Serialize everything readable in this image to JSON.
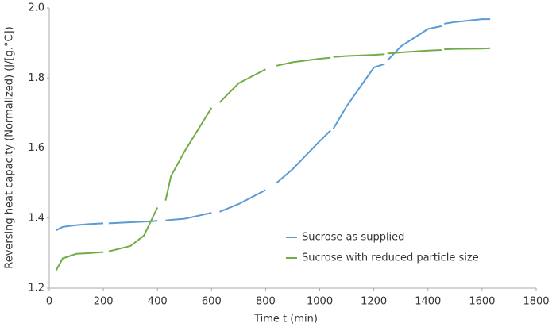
{
  "chart_data": {
    "type": "line",
    "xlabel": "Time t (min)",
    "ylabel": "Reversing heat capacity (Normalized) (J/[g.°C])",
    "x": [
      25,
      50,
      100,
      150,
      200,
      210,
      220,
      300,
      350,
      400,
      415,
      430,
      450,
      500,
      600,
      615,
      630,
      700,
      800,
      820,
      840,
      900,
      1000,
      1040,
      1045,
      1050,
      1100,
      1200,
      1240,
      1245,
      1250,
      1300,
      1400,
      1450,
      1455,
      1460,
      1500,
      1600,
      1630
    ],
    "series": [
      {
        "name": "Sucrose as supplied",
        "color": "#5b9bd5",
        "values": [
          1.365,
          1.375,
          1.38,
          1.383,
          1.385,
          null,
          1.385,
          1.388,
          1.39,
          1.392,
          null,
          1.393,
          1.395,
          1.398,
          1.415,
          null,
          1.418,
          1.44,
          1.48,
          null,
          1.5,
          1.54,
          1.62,
          1.65,
          null,
          1.655,
          1.72,
          1.83,
          1.84,
          null,
          1.85,
          1.89,
          1.94,
          1.948,
          null,
          1.955,
          1.96,
          1.968,
          1.968
        ]
      },
      {
        "name": "Sucrose with reduced particle size",
        "color": "#70ad47",
        "values": [
          1.25,
          1.285,
          1.298,
          1.3,
          1.303,
          null,
          1.305,
          1.32,
          1.35,
          1.43,
          null,
          1.45,
          1.52,
          1.59,
          1.715,
          null,
          1.73,
          1.785,
          1.825,
          null,
          1.835,
          1.845,
          1.855,
          1.858,
          null,
          1.86,
          1.863,
          1.866,
          1.868,
          null,
          1.87,
          1.873,
          1.878,
          1.88,
          null,
          1.882,
          1.883,
          1.884,
          1.885
        ]
      }
    ],
    "xlim": [
      0,
      1800
    ],
    "xticks": [
      0,
      200,
      400,
      600,
      800,
      1000,
      1200,
      1400,
      1600,
      1800
    ],
    "ylim": [
      1.2,
      2.0
    ],
    "yticks": [
      1.2,
      1.4,
      1.6,
      1.8,
      {
        "value": 2.0,
        "label": "2.0"
      }
    ],
    "grid": false,
    "legend": "lower right"
  }
}
